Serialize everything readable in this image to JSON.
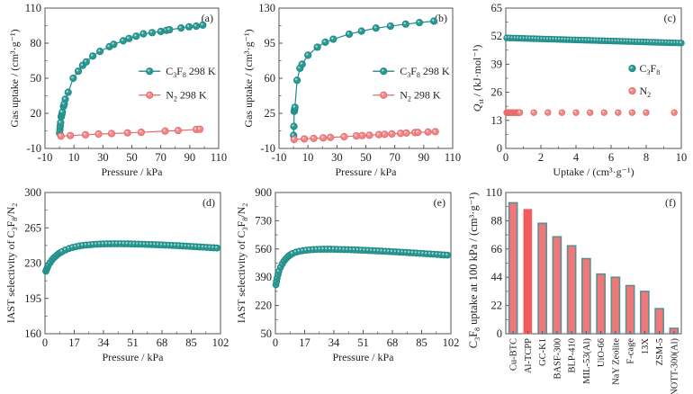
{
  "figure": {
    "colors": {
      "c3f8": "#1f8a87",
      "c3f8_fill": "#2a9a95",
      "n2": "#e86a6a",
      "n2_fill": "#f08a8a",
      "bar_fill": "#f07878",
      "bar_edge": "#5e8f95",
      "bar_highlight": "#f25b5b",
      "axis": "#555555"
    }
  },
  "chart_data": [
    {
      "id": "a",
      "panel_tag": "(a)",
      "type": "line",
      "xlabel": "Pressure / kPa",
      "ylabel": "Gas uptake / (cm³·g⁻¹)",
      "xlim": [
        -10,
        110
      ],
      "ylim": [
        -10,
        110
      ],
      "xticks": [
        -10,
        10,
        30,
        50,
        70,
        90,
        110
      ],
      "yticks": [
        -10,
        20,
        50,
        80,
        110
      ],
      "legend_position": "center-right",
      "series": [
        {
          "name": "C3F8 298 K",
          "legend_main": "C",
          "legend_sub1": "3",
          "legend_mid": "F",
          "legend_sub2": "8",
          "legend_tail": " 298 K",
          "color_key": "c3f8",
          "x": [
            0.1,
            0.3,
            0.5,
            0.8,
            1.2,
            1.6,
            2.0,
            2.8,
            3.3,
            4.0,
            6.0,
            9.5,
            13,
            16,
            18.5,
            23,
            28,
            34.5,
            37.5,
            44,
            48,
            53,
            58,
            64,
            70,
            74,
            76,
            84,
            89.5,
            94.5,
            99
          ],
          "y": [
            3,
            6,
            9,
            12,
            17,
            19,
            21,
            26,
            28,
            32,
            38,
            50,
            56,
            61,
            64,
            69,
            73,
            77,
            79,
            82,
            84,
            86,
            88,
            89,
            90,
            91,
            91.5,
            93,
            94,
            94.5,
            95.5
          ]
        },
        {
          "name": "N2 298 K",
          "legend_main": "N",
          "legend_sub1": "2",
          "legend_mid": "",
          "legend_sub2": "",
          "legend_tail": " 298 K",
          "color_key": "n2",
          "x": [
            1,
            7.5,
            18,
            27,
            36,
            47,
            56.5,
            73,
            82,
            94.5,
            97
          ],
          "y": [
            0.5,
            1,
            1.7,
            2.3,
            2.7,
            3.3,
            3.8,
            4.8,
            5.3,
            6.2,
            6.4
          ]
        }
      ]
    },
    {
      "id": "b",
      "panel_tag": "(b)",
      "type": "line",
      "xlabel": "Pressure / kPa",
      "ylabel": "Gas uptake / (cm³·g⁻¹)",
      "xlim": [
        -10,
        110
      ],
      "ylim": [
        -10,
        130
      ],
      "xticks": [
        -10,
        10,
        30,
        50,
        70,
        90,
        110
      ],
      "yticks": [
        -10,
        25,
        60,
        95,
        130
      ],
      "legend_position": "center-right",
      "series": [
        {
          "name": "C3F8 298 K",
          "legend_main": "C",
          "legend_sub1": "3",
          "legend_mid": "F",
          "legend_sub2": "8",
          "legend_tail": " 298 K",
          "color_key": "c3f8",
          "x": [
            0.1,
            0.3,
            0.5,
            0.8,
            1.0,
            2.5,
            4.5,
            6.0,
            10,
            16.5,
            22,
            27.5,
            38.5,
            47,
            57,
            67,
            77.5,
            87,
            97
          ],
          "y": [
            3,
            12,
            27,
            29,
            31,
            58,
            70,
            74,
            83,
            91,
            96,
            99,
            104,
            107,
            110,
            112,
            114,
            115.5,
            117
          ]
        },
        {
          "name": "N2 298 K",
          "legend_main": "N",
          "legend_sub1": "2",
          "legend_mid": "",
          "legend_sub2": "",
          "legend_tail": " 298 K",
          "color_key": "n2",
          "x": [
            0.5,
            7.5,
            14,
            20.5,
            25.5,
            35,
            43.5,
            47.5,
            52.5,
            59,
            63,
            68,
            74,
            78,
            84,
            86,
            93,
            98
          ],
          "y": [
            -1,
            -0.5,
            0,
            0.5,
            1,
            1.7,
            2.5,
            2.8,
            3.2,
            3.8,
            4.1,
            4.5,
            5.0,
            5.4,
            5.8,
            6.0,
            6.4,
            6.7
          ]
        }
      ]
    },
    {
      "id": "c",
      "panel_tag": "(c)",
      "type": "scatter",
      "xlabel": "Uptake / (cm³·g⁻¹)",
      "ylabel_main": "Q",
      "ylabel_sub": "st",
      "ylabel_tail": " / (kJ·mol⁻¹)",
      "xlim": [
        0,
        10
      ],
      "ylim": [
        0,
        65
      ],
      "xticks": [
        0,
        2,
        4,
        6,
        8,
        10
      ],
      "yticks": [
        0,
        13,
        26,
        39,
        52,
        65
      ],
      "legend_position": "center-right",
      "series": [
        {
          "name": "C3F8",
          "legend_main": "C",
          "legend_sub1": "3",
          "legend_mid": "F",
          "legend_sub2": "8",
          "legend_tail": "",
          "color_key": "c3f8",
          "x_range": [
            0.05,
            10
          ],
          "y_range": [
            51.2,
            48.8
          ],
          "count": 60
        },
        {
          "name": "N2",
          "legend_main": "N",
          "legend_sub1": "2",
          "legend_mid": "",
          "legend_sub2": "",
          "legend_tail": "",
          "color_key": "n2",
          "x": [
            0.05,
            0.1,
            0.15,
            0.2,
            0.25,
            0.3,
            0.35,
            0.4,
            0.45,
            0.5,
            0.55,
            0.6,
            0.65,
            0.7,
            0.75,
            0.8,
            1.6,
            2.4,
            3.2,
            4.0,
            4.8,
            5.6,
            6.4,
            7.2,
            8.0,
            9.6
          ],
          "y": [
            16.6,
            16.6,
            16.6,
            16.6,
            16.6,
            16.6,
            16.6,
            16.6,
            16.6,
            16.6,
            16.6,
            16.6,
            16.6,
            16.6,
            16.6,
            16.6,
            16.6,
            16.6,
            16.6,
            16.6,
            16.6,
            16.6,
            16.6,
            16.6,
            16.6,
            16.6
          ]
        }
      ]
    },
    {
      "id": "d",
      "panel_tag": "(d)",
      "type": "scatter",
      "xlabel": "Pressure / kPa",
      "ylabel_pre": "IAST selectivity of C",
      "ylabel_sub1": "3",
      "ylabel_mid": "F",
      "ylabel_sub2": "8",
      "ylabel_tail": "/N",
      "ylabel_sub3": "2",
      "xlim": [
        0,
        102
      ],
      "ylim": [
        160,
        300
      ],
      "xticks": [
        0,
        17,
        34,
        51,
        68,
        85,
        102
      ],
      "yticks": [
        160,
        195,
        230,
        265,
        300
      ],
      "series": [
        {
          "name": "C3F8/N2",
          "color_key": "c3f8",
          "x": [
            0.5,
            1,
            1.5,
            2,
            3,
            4,
            5,
            6,
            7,
            8,
            9,
            10,
            12,
            14,
            16,
            18,
            20,
            22,
            24,
            26,
            28,
            30,
            32,
            34,
            36,
            38,
            40,
            42,
            44,
            46,
            48,
            50,
            52,
            54,
            56,
            58,
            60,
            62,
            64,
            66,
            68,
            70,
            72,
            74,
            76,
            78,
            80,
            82,
            84,
            86,
            88,
            90,
            92,
            94,
            96,
            98,
            100
          ],
          "y": [
            222,
            224,
            226,
            228,
            230.5,
            233,
            235,
            236.5,
            238,
            239.5,
            240.5,
            241.5,
            243,
            244.5,
            245.5,
            246.3,
            247,
            247.5,
            247.9,
            248.2,
            248.5,
            248.7,
            248.9,
            249,
            249.1,
            249.1,
            249.2,
            249.2,
            249.2,
            249.1,
            249.1,
            249,
            248.9,
            248.8,
            248.7,
            248.6,
            248.5,
            248.4,
            248.3,
            248.1,
            248,
            247.8,
            247.7,
            247.5,
            247.4,
            247.2,
            247,
            246.8,
            246.6,
            246.4,
            246.2,
            246,
            245.8,
            245.6,
            245.4,
            245.2,
            245
          ]
        }
      ]
    },
    {
      "id": "e",
      "panel_tag": "(e)",
      "type": "scatter",
      "xlabel": "Pressure / kPa",
      "ylabel_pre": "IAST selectivity of C",
      "ylabel_sub1": "3",
      "ylabel_mid": "F",
      "ylabel_sub2": "8",
      "ylabel_tail": "/N",
      "ylabel_sub3": "2",
      "xlim": [
        0,
        102
      ],
      "ylim": [
        50,
        900
      ],
      "xticks": [
        0,
        17,
        34,
        51,
        68,
        85,
        102
      ],
      "yticks": [
        50,
        220,
        390,
        560,
        730,
        900
      ],
      "series": [
        {
          "name": "C3F8/N2",
          "color_key": "c3f8",
          "x": [
            0.3,
            0.6,
            1,
            1.5,
            2,
            3,
            4,
            5,
            6,
            7,
            8,
            9,
            10,
            12,
            14,
            16,
            18,
            20,
            22,
            24,
            26,
            28,
            30,
            32,
            34,
            36,
            38,
            40,
            42,
            44,
            46,
            48,
            50,
            52,
            54,
            56,
            58,
            60,
            62,
            64,
            66,
            68,
            70,
            72,
            74,
            76,
            78,
            80,
            82,
            84,
            86,
            88,
            90,
            92,
            94,
            96,
            98,
            100
          ],
          "y": [
            345,
            365,
            385,
            405,
            425,
            450,
            470,
            487,
            500,
            511,
            520,
            527,
            533,
            541,
            546,
            550,
            553,
            555,
            556.5,
            557.5,
            558,
            558.5,
            558.5,
            558.5,
            558,
            557.5,
            557,
            556.5,
            556,
            555.3,
            554.6,
            553.8,
            553,
            552,
            551,
            550,
            549,
            548,
            547,
            546,
            545,
            543.5,
            542.5,
            541,
            540,
            539,
            537.5,
            536.5,
            535,
            534,
            532.5,
            531,
            530,
            528.5,
            527,
            525.5,
            524,
            523
          ]
        }
      ]
    },
    {
      "id": "f",
      "panel_tag": "(f)",
      "type": "bar",
      "xlabel": "",
      "ylabel_pre": "C",
      "ylabel_sub1": "3",
      "ylabel_mid": "F",
      "ylabel_sub2": "8",
      "ylabel_tail": " uptake at 100 kPa / (cm³·g⁻¹)",
      "ylim": [
        0,
        110
      ],
      "yticks": [
        0,
        22,
        44,
        66,
        88,
        110
      ],
      "categories": [
        "Cu-BTC",
        "Al-TCPP",
        "GC-K1",
        "BASF-300",
        "BLP-410",
        "MIL-53(Al)",
        "UiO-66",
        "NaY Zeolite",
        "F-cage",
        "13X",
        "ZSM-5",
        "NOTT-300(Al)"
      ],
      "values": [
        102,
        97,
        86,
        75.5,
        68.5,
        58.5,
        46.5,
        44,
        37.5,
        33,
        19.5,
        4.2
      ],
      "highlight": "Al-TCPP"
    }
  ]
}
